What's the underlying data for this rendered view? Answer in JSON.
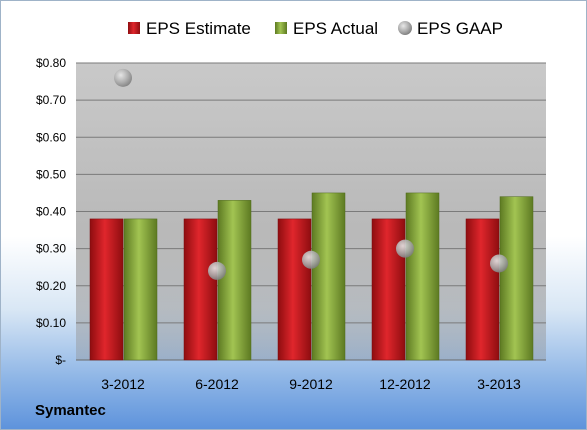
{
  "company": "Symantec",
  "colors": {
    "estimate": "#c0161c",
    "actual": "#86a83a",
    "gaap": "#a8a8a8"
  },
  "chart_data": {
    "type": "bar",
    "categories": [
      "3-2012",
      "6-2012",
      "9-2012",
      "12-2012",
      "3-2013"
    ],
    "series": [
      {
        "name": "EPS Estimate",
        "kind": "bar",
        "values": [
          0.38,
          0.38,
          0.38,
          0.38,
          0.38
        ]
      },
      {
        "name": "EPS Actual",
        "kind": "bar",
        "values": [
          0.38,
          0.43,
          0.45,
          0.45,
          0.44
        ]
      },
      {
        "name": "EPS GAAP",
        "kind": "scatter",
        "values": [
          0.76,
          0.24,
          0.27,
          0.3,
          0.26
        ]
      }
    ],
    "ylim": [
      0,
      0.8
    ],
    "yticks": [
      0,
      0.1,
      0.2,
      0.3,
      0.4,
      0.5,
      0.6,
      0.7,
      0.8
    ],
    "ytick_labels": [
      "$-",
      "$0.10",
      "$0.20",
      "$0.30",
      "$0.40",
      "$0.50",
      "$0.60",
      "$0.70",
      "$0.80"
    ],
    "legend_position": "top",
    "grid": true
  }
}
